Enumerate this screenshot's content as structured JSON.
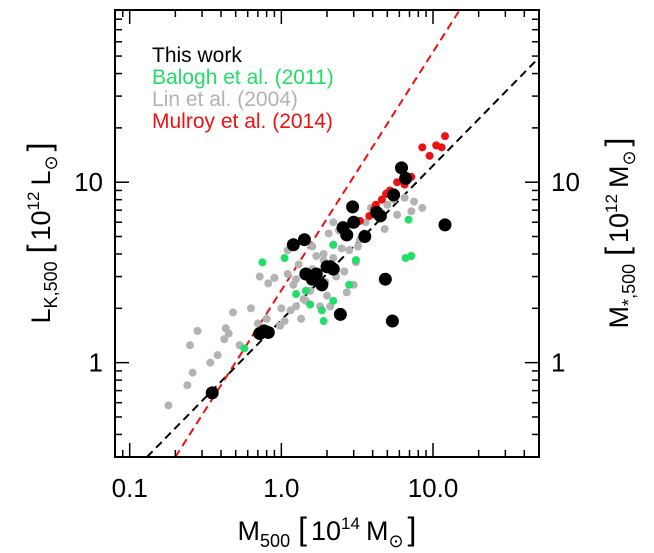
{
  "chart_data": {
    "type": "scatter",
    "x_scale": "log",
    "y_scale": "log",
    "xlim": [
      0.08,
      50
    ],
    "ylim": [
      0.3,
      90
    ],
    "right_ylim": [
      0.3,
      90
    ],
    "x_ticks": [
      {
        "value": 0.1,
        "label": "0.1"
      },
      {
        "value": 1.0,
        "label": "1.0"
      },
      {
        "value": 10.0,
        "label": "10.0"
      }
    ],
    "y_ticks": [
      {
        "value": 1,
        "label": "1"
      },
      {
        "value": 10,
        "label": "10"
      }
    ],
    "right_ticks": [
      {
        "value": 1,
        "label": "1"
      },
      {
        "value": 10,
        "label": "10"
      }
    ],
    "xlabel": {
      "main": "M",
      "sub": "500",
      "bracket_open": "[",
      "pow": "10",
      "sup": "14",
      "unit": "M",
      "unit_sub": "⊙",
      "bracket_close": "]"
    },
    "ylabel": {
      "main": "L",
      "sub": "K,500",
      "bracket_open": "[",
      "pow": "10",
      "sup": "12",
      "unit": "L",
      "unit_sub": "⊙",
      "bracket_close": "]"
    },
    "right_ylabel": {
      "main": "M",
      "sub": "*,500",
      "bracket_open": "[",
      "pow": "10",
      "sup": "12",
      "unit": "M",
      "unit_sub": "⊙",
      "bracket_close": "]"
    },
    "legend_position": "top-left",
    "series": [
      {
        "name": "Lin et al. (2004)",
        "color": "#b3b3b3",
        "marker_size": "small",
        "points": [
          [
            0.18,
            0.58
          ],
          [
            0.24,
            0.75
          ],
          [
            0.26,
            0.88
          ],
          [
            0.25,
            1.25
          ],
          [
            0.34,
            1.0
          ],
          [
            0.38,
            1.1
          ],
          [
            0.28,
            1.5
          ],
          [
            0.42,
            1.35
          ],
          [
            0.43,
            1.55
          ],
          [
            0.45,
            1.45
          ],
          [
            0.53,
            1.25
          ],
          [
            0.48,
            1.9
          ],
          [
            0.63,
            2.0
          ],
          [
            0.7,
            1.65
          ],
          [
            0.8,
            1.75
          ],
          [
            0.85,
            1.5
          ],
          [
            0.98,
            1.6
          ],
          [
            1.0,
            2.0
          ],
          [
            1.05,
            1.7
          ],
          [
            1.15,
            1.95
          ],
          [
            1.25,
            2.05
          ],
          [
            1.35,
            1.75
          ],
          [
            1.45,
            2.2
          ],
          [
            1.55,
            2.5
          ],
          [
            1.2,
            2.7
          ],
          [
            1.1,
            3.1
          ],
          [
            0.9,
            2.95
          ],
          [
            1.5,
            3.1
          ],
          [
            1.6,
            3.3
          ],
          [
            1.75,
            3.0
          ],
          [
            1.85,
            2.6
          ],
          [
            2.0,
            2.35
          ],
          [
            2.1,
            2.05
          ],
          [
            1.4,
            2.25
          ],
          [
            1.8,
            2.05
          ],
          [
            1.3,
            3.5
          ],
          [
            1.7,
            3.9
          ],
          [
            1.9,
            4.0
          ],
          [
            2.2,
            4.5
          ],
          [
            2.5,
            4.3
          ],
          [
            2.8,
            4.2
          ],
          [
            3.2,
            4.4
          ],
          [
            3.1,
            3.6
          ],
          [
            2.6,
            3.2
          ],
          [
            2.3,
            3.0
          ],
          [
            2.0,
            3.4
          ],
          [
            1.9,
            3.7
          ],
          [
            1.6,
            4.4
          ],
          [
            1.1,
            4.2
          ],
          [
            0.72,
            3.0
          ],
          [
            0.82,
            2.75
          ],
          [
            1.25,
            2.9
          ],
          [
            1.55,
            2.9
          ],
          [
            1.95,
            2.8
          ],
          [
            2.05,
            5.2
          ],
          [
            2.2,
            6.0
          ],
          [
            2.55,
            5.5
          ],
          [
            2.9,
            5.8
          ],
          [
            3.0,
            6.1
          ],
          [
            3.6,
            6.0
          ],
          [
            3.9,
            7.2
          ],
          [
            4.2,
            6.8
          ],
          [
            4.5,
            6.5
          ],
          [
            5.0,
            7.5
          ],
          [
            5.5,
            8.0
          ],
          [
            6.5,
            8.2
          ],
          [
            7.5,
            7.8
          ],
          [
            8.5,
            7.2
          ],
          [
            4.8,
            5.5
          ],
          [
            3.5,
            5.2
          ],
          [
            2.4,
            5.4
          ],
          [
            3.0,
            2.7
          ],
          [
            2.7,
            2.45
          ],
          [
            2.2,
            3.8
          ],
          [
            1.8,
            2.8
          ],
          [
            3.3,
            4.8
          ],
          [
            5.8,
            6.6
          ],
          [
            7.2,
            6.9
          ]
        ]
      },
      {
        "name": "Balogh et al. (2011)",
        "color": "#22dd66",
        "marker_size": "small",
        "points": [
          [
            0.75,
            3.6
          ],
          [
            1.25,
            2.4
          ],
          [
            1.45,
            2.5
          ],
          [
            1.55,
            2.1
          ],
          [
            1.85,
            1.95
          ],
          [
            1.9,
            1.7
          ],
          [
            2.2,
            2.2
          ],
          [
            1.05,
            3.8
          ],
          [
            2.2,
            4.5
          ],
          [
            3.1,
            3.7
          ],
          [
            6.9,
            6.2
          ],
          [
            6.6,
            3.8
          ],
          [
            7.2,
            3.9
          ],
          [
            0.57,
            1.2
          ],
          [
            2.8,
            2.7
          ]
        ]
      },
      {
        "name": "Mulroy et al. (2014)",
        "color": "#ee1111",
        "marker_size": "small",
        "points": [
          [
            3.3,
            6.1
          ],
          [
            3.8,
            6.5
          ],
          [
            4.2,
            7.5
          ],
          [
            4.6,
            8.0
          ],
          [
            4.9,
            8.6
          ],
          [
            5.2,
            9.0
          ],
          [
            5.4,
            8.3
          ],
          [
            5.8,
            10.0
          ],
          [
            6.5,
            9.7
          ],
          [
            7.2,
            10.7
          ],
          [
            8.5,
            15.6
          ],
          [
            9.5,
            14.0
          ],
          [
            10.5,
            16.0
          ],
          [
            11.4,
            15.6
          ],
          [
            12.0,
            18.0
          ],
          [
            4.1,
            7.1
          ],
          [
            5.0,
            8.7
          ]
        ]
      },
      {
        "name": "This work",
        "color": "#000000",
        "marker_size": "large",
        "points": [
          [
            0.35,
            0.68
          ],
          [
            0.72,
            1.45
          ],
          [
            0.77,
            1.5
          ],
          [
            0.82,
            1.47
          ],
          [
            1.2,
            4.5
          ],
          [
            1.42,
            4.8
          ],
          [
            1.6,
            2.9
          ],
          [
            1.7,
            3.1
          ],
          [
            1.85,
            2.7
          ],
          [
            2.1,
            3.4
          ],
          [
            2.2,
            3.3
          ],
          [
            2.45,
            1.85
          ],
          [
            2.55,
            5.6
          ],
          [
            2.7,
            5.1
          ],
          [
            2.95,
            7.3
          ],
          [
            3.0,
            6.0
          ],
          [
            3.55,
            5.0
          ],
          [
            4.25,
            6.8
          ],
          [
            4.5,
            6.5
          ],
          [
            4.85,
            2.9
          ],
          [
            5.4,
            1.7
          ],
          [
            5.5,
            8.5
          ],
          [
            6.2,
            12.0
          ],
          [
            6.6,
            10.5
          ],
          [
            12.0,
            5.8
          ],
          [
            1.45,
            3.1
          ],
          [
            2.0,
            3.4
          ]
        ]
      }
    ],
    "fit_lines": [
      {
        "color": "#000000",
        "dash": "dashed",
        "x": [
          0.13,
          50
        ],
        "y": [
          0.3,
          49
        ]
      },
      {
        "color": "#ee1111",
        "dash": "dashed",
        "x": [
          0.2,
          15.0
        ],
        "y": [
          0.3,
          90
        ]
      }
    ],
    "legend": [
      {
        "label": "This work",
        "color": "#000000"
      },
      {
        "label": "Balogh et al. (2011)",
        "color": "#22dd66"
      },
      {
        "label": "Lin et al. (2004)",
        "color": "#b3b3b3"
      },
      {
        "label": "Mulroy et al. (2014)",
        "color": "#ee1111"
      }
    ]
  }
}
